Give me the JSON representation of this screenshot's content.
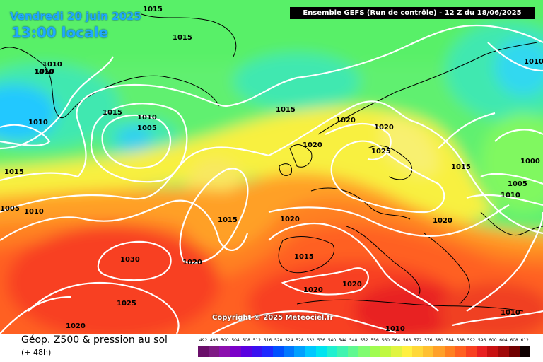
{
  "header": {
    "date_text": "Vendredi 20 juin 2025",
    "time_text": "13:00 locale",
    "model_text": "Ensemble GEFS  (Run de contrôle)  -  12 Z du 18/06/2025"
  },
  "copyright_text": "Copyright © 2025 Meteociel.fr",
  "legend": {
    "title": "Géop. Z500 & pression au sol",
    "subtitle": "(+ 48h)",
    "scale_values": [
      "492",
      "496",
      "500",
      "504",
      "508",
      "512",
      "516",
      "520",
      "524",
      "528",
      "532",
      "536",
      "540",
      "544",
      "548",
      "552",
      "556",
      "560",
      "564",
      "568",
      "572",
      "576",
      "580",
      "584",
      "588",
      "592",
      "596",
      "600",
      "604",
      "608",
      "612"
    ],
    "scale_colors": [
      "#6a0f6a",
      "#7e1a84",
      "#8c0fae",
      "#7a00c8",
      "#5a00e0",
      "#3a10f0",
      "#1e28ff",
      "#0050ff",
      "#0078ff",
      "#00a0ff",
      "#00c8ff",
      "#00e4f0",
      "#20f0d0",
      "#40f4b0",
      "#60f890",
      "#80fc70",
      "#a0fc50",
      "#c0f840",
      "#e0f440",
      "#fff040",
      "#ffd838",
      "#ffc030",
      "#ffa028",
      "#ff8020",
      "#ff6020",
      "#f84020",
      "#e82020",
      "#c81010",
      "#a00808",
      "#700000",
      "#100000"
    ]
  },
  "map": {
    "isobar_labels": [
      "1015",
      "1015",
      "1010",
      "1010",
      "1010",
      "1015",
      "1010",
      "1005",
      "1015",
      "1020",
      "1020",
      "1020",
      "1025",
      "1015",
      "1010",
      "1000",
      "1005",
      "1010",
      "1015",
      "1005",
      "1010",
      "1015",
      "1020",
      "1020",
      "1030",
      "1020",
      "1015",
      "1025",
      "1020",
      "1020",
      "1010",
      "1010",
      "1020",
      "1010"
    ]
  }
}
